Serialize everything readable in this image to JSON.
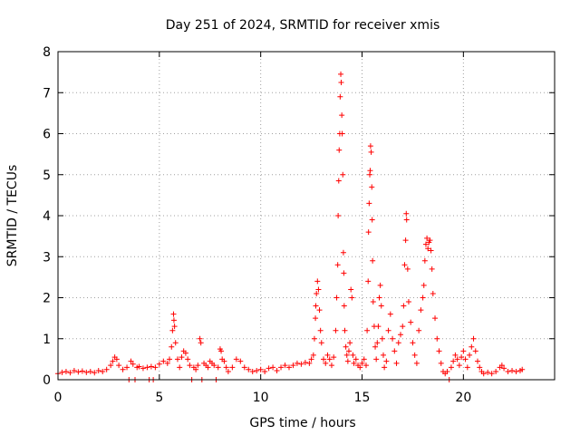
{
  "colors": {
    "series": "#ff0000",
    "background": "#ffffff",
    "grid": "#a0a0a0",
    "frame": "#000000"
  },
  "chart_data": {
    "type": "scatter",
    "title": "Day 251 of 2024, SRMTID for receiver xmis",
    "xlabel": "GPS time / hours",
    "ylabel": "SRMTID / TECUs",
    "xlim": [
      0,
      24.5
    ],
    "ylim": [
      0,
      8
    ],
    "xticks": [
      0,
      5,
      10,
      15,
      20
    ],
    "yticks": [
      0,
      1,
      2,
      3,
      4,
      5,
      6,
      7,
      8
    ],
    "grid": true,
    "marker": "+",
    "series": [
      {
        "name": "SRMTID",
        "color": "#ff0000",
        "points": [
          [
            0.0,
            0.15
          ],
          [
            0.2,
            0.18
          ],
          [
            0.4,
            0.2
          ],
          [
            0.6,
            0.17
          ],
          [
            0.8,
            0.22
          ],
          [
            1.0,
            0.19
          ],
          [
            1.2,
            0.21
          ],
          [
            1.4,
            0.18
          ],
          [
            1.6,
            0.2
          ],
          [
            1.8,
            0.17
          ],
          [
            2.0,
            0.22
          ],
          [
            2.2,
            0.2
          ],
          [
            2.4,
            0.25
          ],
          [
            2.6,
            0.35
          ],
          [
            2.7,
            0.45
          ],
          [
            2.8,
            0.55
          ],
          [
            2.9,
            0.5
          ],
          [
            3.0,
            0.35
          ],
          [
            3.2,
            0.25
          ],
          [
            3.4,
            0.3
          ],
          [
            3.5,
            0.0
          ],
          [
            3.6,
            0.45
          ],
          [
            3.7,
            0.38
          ],
          [
            3.8,
            0.0
          ],
          [
            3.9,
            0.3
          ],
          [
            4.0,
            0.32
          ],
          [
            4.2,
            0.28
          ],
          [
            4.4,
            0.3
          ],
          [
            4.5,
            0.0
          ],
          [
            4.6,
            0.32
          ],
          [
            4.7,
            0.0
          ],
          [
            4.8,
            0.3
          ],
          [
            5.0,
            0.38
          ],
          [
            5.2,
            0.45
          ],
          [
            5.4,
            0.4
          ],
          [
            5.5,
            0.5
          ],
          [
            5.6,
            0.8
          ],
          [
            5.65,
            1.2
          ],
          [
            5.7,
            1.6
          ],
          [
            5.72,
            1.45
          ],
          [
            5.75,
            1.3
          ],
          [
            5.8,
            0.9
          ],
          [
            5.9,
            0.5
          ],
          [
            6.0,
            0.3
          ],
          [
            6.1,
            0.55
          ],
          [
            6.2,
            0.7
          ],
          [
            6.3,
            0.65
          ],
          [
            6.4,
            0.5
          ],
          [
            6.5,
            0.35
          ],
          [
            6.6,
            0.0
          ],
          [
            6.7,
            0.3
          ],
          [
            6.8,
            0.25
          ],
          [
            6.9,
            0.35
          ],
          [
            7.0,
            1.0
          ],
          [
            7.05,
            0.9
          ],
          [
            7.1,
            0.0
          ],
          [
            7.2,
            0.4
          ],
          [
            7.3,
            0.35
          ],
          [
            7.4,
            0.3
          ],
          [
            7.5,
            0.45
          ],
          [
            7.6,
            0.4
          ],
          [
            7.7,
            0.35
          ],
          [
            7.8,
            0.0
          ],
          [
            7.9,
            0.3
          ],
          [
            8.0,
            0.75
          ],
          [
            8.05,
            0.7
          ],
          [
            8.1,
            0.5
          ],
          [
            8.2,
            0.45
          ],
          [
            8.3,
            0.3
          ],
          [
            8.4,
            0.2
          ],
          [
            8.6,
            0.3
          ],
          [
            8.8,
            0.5
          ],
          [
            9.0,
            0.45
          ],
          [
            9.2,
            0.3
          ],
          [
            9.4,
            0.25
          ],
          [
            9.6,
            0.2
          ],
          [
            9.8,
            0.22
          ],
          [
            10.0,
            0.25
          ],
          [
            10.2,
            0.2
          ],
          [
            10.4,
            0.28
          ],
          [
            10.6,
            0.3
          ],
          [
            10.8,
            0.22
          ],
          [
            11.0,
            0.3
          ],
          [
            11.2,
            0.35
          ],
          [
            11.4,
            0.3
          ],
          [
            11.6,
            0.35
          ],
          [
            11.8,
            0.4
          ],
          [
            12.0,
            0.38
          ],
          [
            12.2,
            0.42
          ],
          [
            12.4,
            0.4
          ],
          [
            12.5,
            0.5
          ],
          [
            12.6,
            0.6
          ],
          [
            12.65,
            1.0
          ],
          [
            12.7,
            1.5
          ],
          [
            12.72,
            1.8
          ],
          [
            12.75,
            2.1
          ],
          [
            12.8,
            2.4
          ],
          [
            12.85,
            2.2
          ],
          [
            12.9,
            1.7
          ],
          [
            12.95,
            1.2
          ],
          [
            13.0,
            0.9
          ],
          [
            13.1,
            0.5
          ],
          [
            13.2,
            0.4
          ],
          [
            13.3,
            0.6
          ],
          [
            13.4,
            0.5
          ],
          [
            13.5,
            0.35
          ],
          [
            13.6,
            0.55
          ],
          [
            13.7,
            1.2
          ],
          [
            13.75,
            2.0
          ],
          [
            13.8,
            2.8
          ],
          [
            13.82,
            4.0
          ],
          [
            13.85,
            4.85
          ],
          [
            13.87,
            5.6
          ],
          [
            13.9,
            6.0
          ],
          [
            13.92,
            6.9
          ],
          [
            13.95,
            7.45
          ],
          [
            13.97,
            7.25
          ],
          [
            14.0,
            6.45
          ],
          [
            14.02,
            6.0
          ],
          [
            14.05,
            5.0
          ],
          [
            14.08,
            3.1
          ],
          [
            14.1,
            2.6
          ],
          [
            14.12,
            1.8
          ],
          [
            14.15,
            1.2
          ],
          [
            14.2,
            0.8
          ],
          [
            14.25,
            0.6
          ],
          [
            14.3,
            0.45
          ],
          [
            14.35,
            0.7
          ],
          [
            14.4,
            0.9
          ],
          [
            14.45,
            2.2
          ],
          [
            14.5,
            2.0
          ],
          [
            14.55,
            0.6
          ],
          [
            14.6,
            0.4
          ],
          [
            14.7,
            0.5
          ],
          [
            14.8,
            0.35
          ],
          [
            14.9,
            0.3
          ],
          [
            15.0,
            0.4
          ],
          [
            15.1,
            0.5
          ],
          [
            15.2,
            0.35
          ],
          [
            15.25,
            1.2
          ],
          [
            15.3,
            2.4
          ],
          [
            15.32,
            3.6
          ],
          [
            15.35,
            4.3
          ],
          [
            15.38,
            5.0
          ],
          [
            15.4,
            5.1
          ],
          [
            15.42,
            5.7
          ],
          [
            15.45,
            5.55
          ],
          [
            15.48,
            4.7
          ],
          [
            15.5,
            3.9
          ],
          [
            15.52,
            2.9
          ],
          [
            15.55,
            1.9
          ],
          [
            15.6,
            1.3
          ],
          [
            15.65,
            0.8
          ],
          [
            15.7,
            0.5
          ],
          [
            15.75,
            0.9
          ],
          [
            15.8,
            1.3
          ],
          [
            15.85,
            2.0
          ],
          [
            15.9,
            2.3
          ],
          [
            15.95,
            1.8
          ],
          [
            16.0,
            1.0
          ],
          [
            16.05,
            0.6
          ],
          [
            16.1,
            0.3
          ],
          [
            16.2,
            0.45
          ],
          [
            16.3,
            1.2
          ],
          [
            16.4,
            1.6
          ],
          [
            16.5,
            1.0
          ],
          [
            16.6,
            0.7
          ],
          [
            16.7,
            0.4
          ],
          [
            16.8,
            0.9
          ],
          [
            16.9,
            1.1
          ],
          [
            17.0,
            1.3
          ],
          [
            17.05,
            1.8
          ],
          [
            17.1,
            2.8
          ],
          [
            17.15,
            3.4
          ],
          [
            17.18,
            4.05
          ],
          [
            17.2,
            3.9
          ],
          [
            17.25,
            2.7
          ],
          [
            17.3,
            1.9
          ],
          [
            17.4,
            1.4
          ],
          [
            17.5,
            0.9
          ],
          [
            17.6,
            0.6
          ],
          [
            17.7,
            0.4
          ],
          [
            17.8,
            1.2
          ],
          [
            17.9,
            1.7
          ],
          [
            18.0,
            2.0
          ],
          [
            18.05,
            2.3
          ],
          [
            18.1,
            2.9
          ],
          [
            18.15,
            3.3
          ],
          [
            18.2,
            3.45
          ],
          [
            18.25,
            3.2
          ],
          [
            18.3,
            3.35
          ],
          [
            18.35,
            3.4
          ],
          [
            18.4,
            3.15
          ],
          [
            18.45,
            2.7
          ],
          [
            18.5,
            2.1
          ],
          [
            18.6,
            1.5
          ],
          [
            18.7,
            1.0
          ],
          [
            18.8,
            0.7
          ],
          [
            18.9,
            0.4
          ],
          [
            19.0,
            0.2
          ],
          [
            19.1,
            0.15
          ],
          [
            19.2,
            0.2
          ],
          [
            19.3,
            0.0
          ],
          [
            19.4,
            0.3
          ],
          [
            19.5,
            0.45
          ],
          [
            19.6,
            0.6
          ],
          [
            19.7,
            0.5
          ],
          [
            19.8,
            0.35
          ],
          [
            19.9,
            0.55
          ],
          [
            20.0,
            0.7
          ],
          [
            20.1,
            0.5
          ],
          [
            20.2,
            0.3
          ],
          [
            20.3,
            0.6
          ],
          [
            20.4,
            0.8
          ],
          [
            20.5,
            1.0
          ],
          [
            20.6,
            0.7
          ],
          [
            20.7,
            0.45
          ],
          [
            20.8,
            0.3
          ],
          [
            20.9,
            0.2
          ],
          [
            21.0,
            0.15
          ],
          [
            21.2,
            0.18
          ],
          [
            21.4,
            0.15
          ],
          [
            21.6,
            0.2
          ],
          [
            21.8,
            0.3
          ],
          [
            21.9,
            0.35
          ],
          [
            22.0,
            0.28
          ],
          [
            22.2,
            0.2
          ],
          [
            22.4,
            0.22
          ],
          [
            22.6,
            0.2
          ],
          [
            22.8,
            0.22
          ],
          [
            22.9,
            0.25
          ]
        ]
      }
    ]
  }
}
